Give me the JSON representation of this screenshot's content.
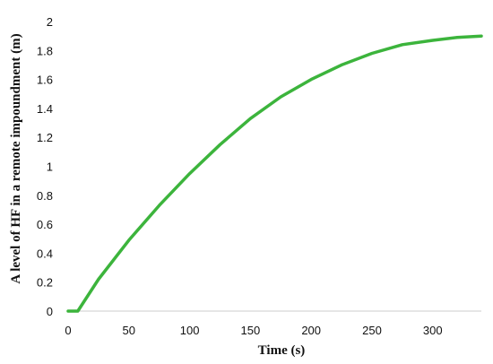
{
  "chart_data": {
    "type": "line",
    "title": "",
    "xlabel": "Time (s)",
    "ylabel": "A level of HF in a remote impoundment (m)",
    "xlim": [
      0,
      340
    ],
    "ylim": [
      0,
      2
    ],
    "x_ticks": [
      "0",
      "50",
      "100",
      "150",
      "200",
      "250",
      "300"
    ],
    "y_ticks": [
      "0",
      "0.2",
      "0.4",
      "0.6",
      "0.8",
      "1",
      "1.2",
      "1.4",
      "1.6",
      "1.8",
      "2"
    ],
    "grid": false,
    "legend": "none",
    "series": [
      {
        "color": "#3cb43c",
        "x": [
          0,
          8,
          25,
          50,
          75,
          100,
          125,
          150,
          175,
          200,
          225,
          250,
          275,
          300,
          320,
          340
        ],
        "y": [
          0,
          0,
          0.22,
          0.49,
          0.73,
          0.95,
          1.15,
          1.33,
          1.48,
          1.6,
          1.7,
          1.78,
          1.84,
          1.87,
          1.89,
          1.9
        ]
      }
    ]
  }
}
